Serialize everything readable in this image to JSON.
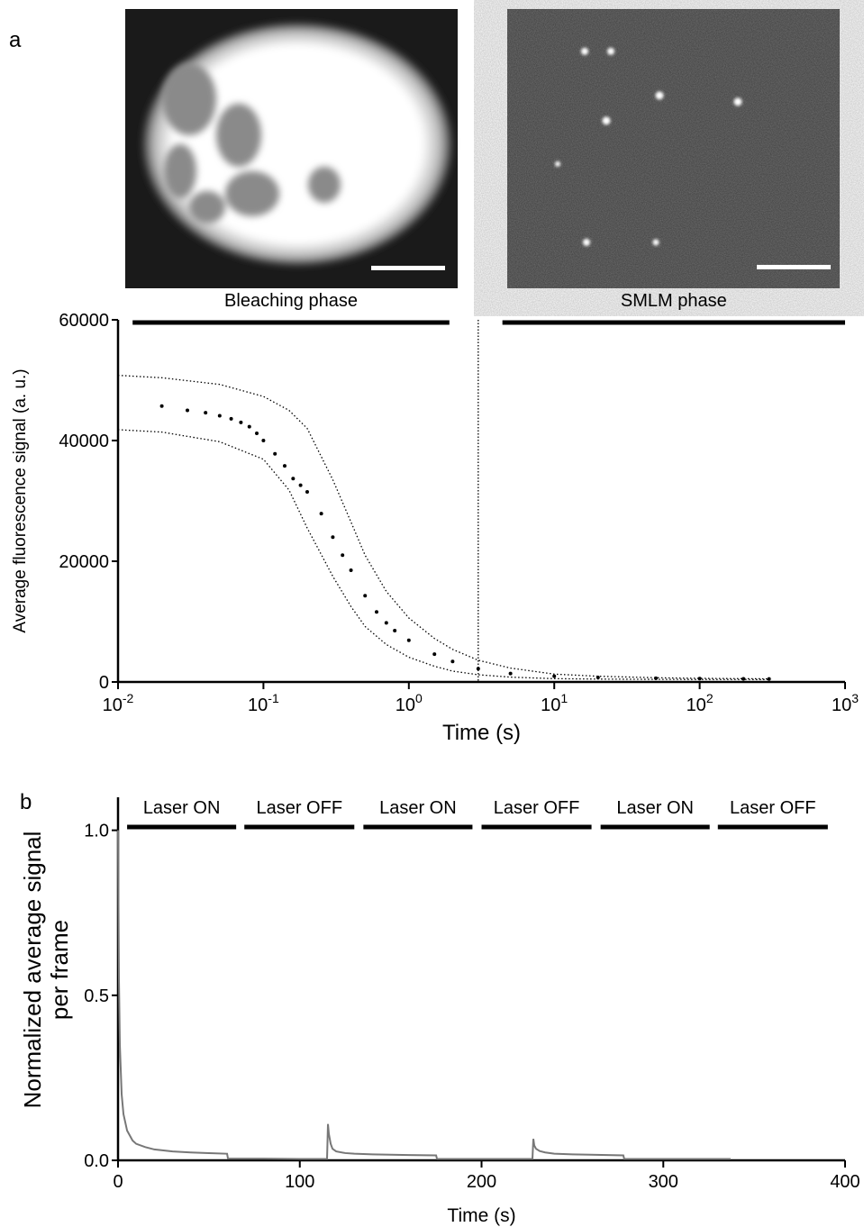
{
  "chart_data": [
    {
      "type": "scatter",
      "panel": "a",
      "top_labels": [],
      "xlabel": "Time (s)",
      "ylabel": "Average fluorescence signal (a. u.)",
      "xscale": "log",
      "xlim": [
        0.01,
        1000
      ],
      "ylim": [
        0,
        60000
      ],
      "xticks": [
        {
          "value": 0.01,
          "label": "10",
          "exponent": "-2"
        },
        {
          "value": 0.1,
          "label": "10",
          "exponent": "-1"
        },
        {
          "value": 1,
          "label": "10",
          "exponent": "0"
        },
        {
          "value": 10,
          "label": "10",
          "exponent": "1"
        },
        {
          "value": 100,
          "label": "10",
          "exponent": "2"
        },
        {
          "value": 1000,
          "label": "10",
          "exponent": "3"
        }
      ],
      "yticks": [
        0,
        20000,
        40000,
        60000
      ],
      "vline": 3,
      "phases": [
        {
          "label": "Bleaching phase",
          "range": [
            0.0126,
            1.9
          ]
        },
        {
          "label": "SMLM phase",
          "range": [
            4.4,
            1000
          ]
        }
      ],
      "series": [
        {
          "mode": "markers",
          "color": "#000000",
          "x": [
            0.02,
            0.03,
            0.04,
            0.05,
            0.06,
            0.07,
            0.08,
            0.09,
            0.1,
            0.12,
            0.14,
            0.16,
            0.18,
            0.2,
            0.25,
            0.3,
            0.35,
            0.4,
            0.5,
            0.6,
            0.7,
            0.8,
            1,
            1.5,
            2,
            3,
            5,
            10,
            20,
            50,
            100,
            200,
            300
          ],
          "values": [
            45700,
            45000,
            44600,
            44100,
            43600,
            43000,
            42300,
            41200,
            40000,
            37800,
            35800,
            33700,
            32600,
            31500,
            27900,
            24000,
            21000,
            18500,
            14300,
            11600,
            9800,
            8500,
            6900,
            4600,
            3400,
            2200,
            1400,
            950,
            750,
            620,
            560,
            520,
            500
          ]
        },
        {
          "mode": "dotted",
          "color": "#000000",
          "x": [
            0.01,
            0.02,
            0.05,
            0.1,
            0.15,
            0.2,
            0.3,
            0.4,
            0.5,
            0.7,
            1,
            1.5,
            2,
            3,
            5,
            10,
            20,
            50,
            100,
            300
          ],
          "values": [
            50800,
            50400,
            49300,
            47300,
            45000,
            42000,
            33500,
            26500,
            21000,
            15000,
            10600,
            7200,
            5400,
            3600,
            2300,
            1300,
            950,
            700,
            600,
            520
          ]
        },
        {
          "mode": "dotted",
          "color": "#000000",
          "x": [
            0.01,
            0.02,
            0.05,
            0.1,
            0.15,
            0.2,
            0.3,
            0.4,
            0.5,
            0.7,
            1,
            1.5,
            2,
            3,
            5,
            10,
            20,
            50,
            100,
            300
          ],
          "values": [
            41800,
            41400,
            39800,
            36900,
            31800,
            25500,
            17500,
            12500,
            9200,
            6200,
            4100,
            2600,
            1800,
            1200,
            800,
            550,
            480,
            430,
            420,
            400
          ]
        }
      ]
    },
    {
      "type": "line",
      "panel": "b",
      "xlabel": "Time (s)",
      "ylabel": [
        "Normalized average signal",
        "per frame"
      ],
      "xscale": "linear",
      "xlim": [
        0,
        400
      ],
      "ylim": [
        0,
        1.1
      ],
      "xticks": [
        0,
        100,
        200,
        300,
        400
      ],
      "yticks": [
        {
          "value": 0,
          "label": "0.0"
        },
        {
          "value": 0.5,
          "label": "0.5"
        },
        {
          "value": 1,
          "label": "1.0"
        }
      ],
      "phases": [
        {
          "label": "Laser ON",
          "range": [
            5,
            65
          ]
        },
        {
          "label": "Laser OFF",
          "range": [
            69.5,
            130
          ]
        },
        {
          "label": "Laser ON",
          "range": [
            135,
            195
          ]
        },
        {
          "label": "Laser OFF",
          "range": [
            200,
            260.5
          ]
        },
        {
          "label": "Laser ON",
          "range": [
            265.5,
            325.5
          ]
        },
        {
          "label": "Laser OFF",
          "range": [
            330,
            390.5
          ]
        }
      ],
      "series": [
        {
          "mode": "line",
          "color": "#777777",
          "x": [
            0,
            0.5,
            1,
            2,
            3,
            5,
            8,
            10,
            15,
            20,
            30,
            40,
            50,
            60,
            60.5,
            80,
            100,
            115,
            115.5,
            116,
            117,
            118,
            120,
            125,
            130,
            140,
            150,
            160,
            175,
            175.5,
            200,
            228,
            228.5,
            229,
            230,
            232,
            235,
            240,
            250,
            260,
            278,
            278.5,
            300,
            320,
            337
          ],
          "values": [
            1.0,
            0.55,
            0.35,
            0.2,
            0.14,
            0.09,
            0.06,
            0.05,
            0.04,
            0.033,
            0.027,
            0.024,
            0.022,
            0.02,
            0.005,
            0.005,
            0.004,
            0.004,
            0.11,
            0.08,
            0.05,
            0.035,
            0.027,
            0.022,
            0.02,
            0.018,
            0.017,
            0.016,
            0.015,
            0.004,
            0.004,
            0.004,
            0.065,
            0.045,
            0.035,
            0.028,
            0.024,
            0.02,
            0.018,
            0.017,
            0.015,
            0.004,
            0.004,
            0.004,
            0.004
          ]
        }
      ]
    }
  ]
}
